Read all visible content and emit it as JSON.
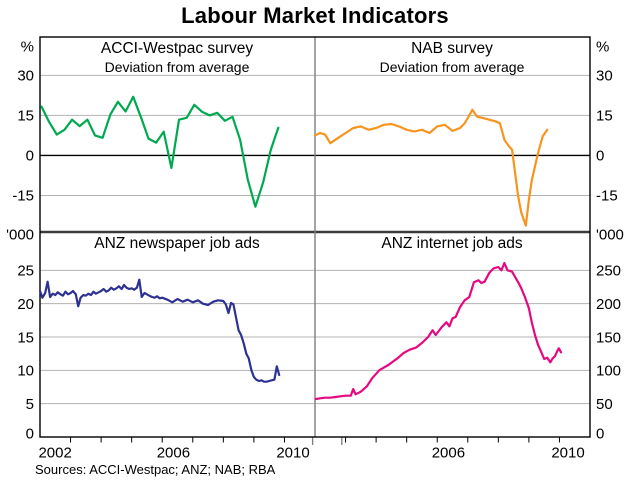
{
  "title": "Labour Market Indicators",
  "source_note": "Sources: ACCI-Westpac; ANZ; NAB; RBA",
  "colors": {
    "acci_westpac": "#00A94F",
    "nab": "#F7941E",
    "anz_newspaper": "#2D3193",
    "anz_internet": "#E50880",
    "gridline": "#b3b3b3",
    "axis": "#000000",
    "panel_divider": "#7d7d7d",
    "mid_divider": "#3a3a3a"
  },
  "chart_data": [
    {
      "id": "acci_westpac",
      "type": "line",
      "title": "ACCI-Westpac survey",
      "subtitle": "Deviation from average",
      "unit": "%",
      "quadrant": "top-left",
      "color": "#00A94F",
      "ylim": [
        -28.7,
        44.4
      ],
      "yticks": [
        30,
        15,
        0,
        -15
      ],
      "zero_axis": true,
      "xlim": [
        2002,
        2011
      ],
      "xlabels": [],
      "x": [
        2002.05,
        2002.3,
        2002.55,
        2002.8,
        2003.05,
        2003.3,
        2003.55,
        2003.8,
        2004.05,
        2004.3,
        2004.55,
        2004.8,
        2005.05,
        2005.3,
        2005.55,
        2005.8,
        2006.05,
        2006.3,
        2006.55,
        2006.8,
        2007.05,
        2007.3,
        2007.55,
        2007.8,
        2008.05,
        2008.3,
        2008.55,
        2008.8,
        2009.05,
        2009.3,
        2009.55,
        2009.8
      ],
      "values": [
        18.3,
        12.5,
        7.8,
        9.6,
        13.4,
        11.0,
        13.4,
        7.5,
        6.6,
        15.3,
        20.1,
        16.5,
        22.0,
        14.5,
        6.3,
        4.8,
        8.9,
        -4.7,
        13.4,
        14.1,
        19.0,
        16.4,
        15.0,
        16.0,
        13.0,
        14.5,
        5.9,
        -9.1,
        -19.2,
        -10.2,
        2.0,
        10.4
      ]
    },
    {
      "id": "nab",
      "type": "line",
      "title": "NAB survey",
      "subtitle": "Deviation from average",
      "unit": "%",
      "quadrant": "top-right",
      "color": "#F7941E",
      "ylim": [
        -28.7,
        44.4
      ],
      "yticks": [
        30,
        15,
        0,
        -15
      ],
      "zero_axis": true,
      "xlim": [
        2002,
        2011
      ],
      "xlabels": [],
      "x": [
        2002.0,
        2002.17,
        2002.33,
        2002.5,
        2002.75,
        2003.0,
        2003.25,
        2003.5,
        2003.75,
        2004.0,
        2004.25,
        2004.5,
        2004.75,
        2005.0,
        2005.25,
        2005.5,
        2005.75,
        2006.0,
        2006.25,
        2006.5,
        2006.75,
        2006.9,
        2007.0,
        2007.15,
        2007.3,
        2007.5,
        2007.7,
        2007.9,
        2008.05,
        2008.2,
        2008.35,
        2008.45,
        2008.55,
        2008.65,
        2008.75,
        2008.9,
        2009.0,
        2009.1,
        2009.3,
        2009.45,
        2009.6
      ],
      "values": [
        7.5,
        8.4,
        7.8,
        4.6,
        6.5,
        8.4,
        10.3,
        10.9,
        9.6,
        10.3,
        11.5,
        11.8,
        10.9,
        9.6,
        9.0,
        9.6,
        8.4,
        10.9,
        11.5,
        9.2,
        10.3,
        12.1,
        14.0,
        17.1,
        14.6,
        14.0,
        13.4,
        12.8,
        12.1,
        5.9,
        3.4,
        2.1,
        -6.5,
        -15.4,
        -21.5,
        -26.3,
        -16.6,
        -9.1,
        1.0,
        7.1,
        9.6
      ]
    },
    {
      "id": "anz_newspaper",
      "type": "line",
      "title": "ANZ newspaper job ads",
      "subtitle": "",
      "unit": "'000",
      "quadrant": "bottom-left",
      "color": "#2D3193",
      "ylim": [
        0,
        30.75
      ],
      "yticks": [
        25,
        20,
        15,
        10,
        5,
        0
      ],
      "zero_axis": false,
      "xlim": [
        2002,
        2011
      ],
      "xlabels": [
        "2002",
        "2006",
        "2010"
      ],
      "x": [
        2002.0,
        2002.08,
        2002.17,
        2002.25,
        2002.33,
        2002.42,
        2002.5,
        2002.58,
        2002.67,
        2002.75,
        2002.83,
        2002.92,
        2003.0,
        2003.08,
        2003.17,
        2003.25,
        2003.33,
        2003.42,
        2003.5,
        2003.58,
        2003.67,
        2003.75,
        2003.83,
        2003.92,
        2004.0,
        2004.08,
        2004.17,
        2004.25,
        2004.33,
        2004.42,
        2004.5,
        2004.58,
        2004.67,
        2004.75,
        2004.83,
        2004.92,
        2005.0,
        2005.08,
        2005.17,
        2005.25,
        2005.33,
        2005.42,
        2005.5,
        2005.58,
        2005.67,
        2005.75,
        2005.83,
        2005.92,
        2006.0,
        2006.17,
        2006.33,
        2006.5,
        2006.67,
        2006.83,
        2007.0,
        2007.17,
        2007.33,
        2007.5,
        2007.67,
        2007.83,
        2008.0,
        2008.08,
        2008.17,
        2008.25,
        2008.33,
        2008.42,
        2008.5,
        2008.58,
        2008.67,
        2008.75,
        2008.83,
        2008.92,
        2009.0,
        2009.08,
        2009.17,
        2009.25,
        2009.33,
        2009.42,
        2009.5,
        2009.58,
        2009.67,
        2009.75,
        2009.83
      ],
      "values": [
        21.9,
        20.9,
        21.6,
        23.3,
        21.0,
        21.5,
        21.3,
        21.7,
        21.4,
        21.2,
        21.8,
        21.4,
        21.6,
        21.9,
        21.4,
        19.6,
        20.9,
        21.3,
        21.2,
        21.5,
        21.3,
        21.8,
        21.5,
        21.7,
        21.9,
        22.2,
        21.8,
        22.0,
        22.4,
        22.1,
        22.3,
        22.6,
        22.2,
        22.8,
        22.4,
        22.2,
        22.3,
        22.1,
        22.4,
        23.6,
        21.0,
        21.6,
        21.4,
        21.2,
        21.0,
        20.9,
        21.1,
        20.8,
        20.9,
        20.6,
        20.2,
        20.7,
        20.3,
        20.6,
        20.2,
        20.5,
        20.0,
        19.8,
        20.3,
        20.5,
        20.4,
        19.9,
        18.6,
        20.1,
        19.9,
        17.8,
        16.0,
        15.3,
        14.0,
        12.5,
        11.8,
        10.0,
        9.0,
        8.6,
        8.4,
        8.5,
        8.3,
        8.3,
        8.4,
        8.5,
        8.6,
        10.6,
        9.3
      ]
    },
    {
      "id": "anz_internet",
      "type": "line",
      "title": "ANZ internet job ads",
      "subtitle": "",
      "unit": "'000",
      "quadrant": "bottom-right",
      "color": "#E50880",
      "ylim": [
        0,
        307.5
      ],
      "yticks": [
        250,
        200,
        150,
        100,
        50,
        0
      ],
      "zero_axis": false,
      "xlim": [
        2002,
        2011
      ],
      "xlabels": [
        "2006",
        "2010"
      ],
      "x": [
        2002.03,
        2002.17,
        2002.33,
        2002.5,
        2002.67,
        2002.83,
        2003.0,
        2003.17,
        2003.25,
        2003.33,
        2003.5,
        2003.7,
        2003.87,
        2004.1,
        2004.4,
        2004.7,
        2004.9,
        2005.1,
        2005.3,
        2005.5,
        2005.7,
        2005.85,
        2005.95,
        2006.15,
        2006.3,
        2006.4,
        2006.5,
        2006.6,
        2006.75,
        2006.9,
        2007.05,
        2007.2,
        2007.35,
        2007.45,
        2007.55,
        2007.7,
        2007.85,
        2008.0,
        2008.1,
        2008.2,
        2008.3,
        2008.45,
        2008.55,
        2008.65,
        2008.75,
        2008.87,
        2009.0,
        2009.1,
        2009.2,
        2009.3,
        2009.4,
        2009.5,
        2009.6,
        2009.7,
        2009.78,
        2009.85,
        2009.92,
        2009.98,
        2010.05
      ],
      "values": [
        57,
        58,
        59,
        59,
        60,
        61,
        62,
        62,
        72,
        64,
        68,
        76,
        88,
        100,
        108,
        118,
        126,
        131,
        134,
        141,
        150,
        160,
        153,
        165,
        172,
        166,
        178,
        180,
        195,
        205,
        210,
        232,
        235,
        231,
        233,
        246,
        253,
        255,
        250,
        261,
        250,
        248,
        240,
        232,
        223,
        210,
        193,
        171,
        153,
        138,
        128,
        117,
        119,
        112,
        118,
        121,
        128,
        133,
        127
      ]
    }
  ]
}
